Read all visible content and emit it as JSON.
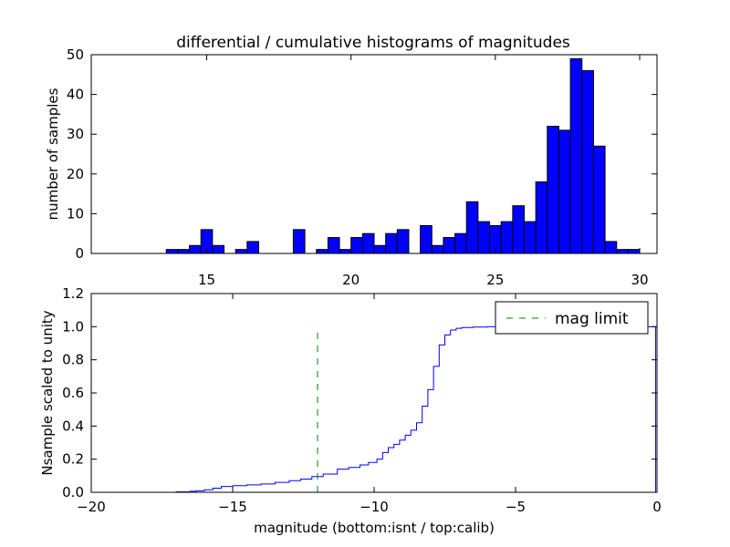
{
  "figure": {
    "title": "differential / cumulative histograms of magnitudes",
    "ylabel_top": "number of samples",
    "ylabel_bottom": "Nsample scaled to unity",
    "xlabel_bottom": "magnitude (bottom:isnt / top:calib)"
  },
  "colors": {
    "bars": "#0000ff",
    "cumulative": "#0000ff",
    "mag_limit": "#008000",
    "edges": "#000000"
  },
  "chart_data": [
    {
      "type": "bar",
      "title": "differential / cumulative histograms of magnitudes",
      "xlabel": "",
      "ylabel": "number of samples",
      "xlim": [
        11.0,
        30.6
      ],
      "ylim": [
        0,
        50
      ],
      "bin_width": 0.4,
      "xticks": [
        15,
        20,
        25,
        30
      ],
      "yticks": [
        0,
        10,
        20,
        30,
        40,
        50
      ],
      "x_tick_position": "top",
      "bins": [
        {
          "x": 13.6,
          "value": 1
        },
        {
          "x": 14.0,
          "value": 1
        },
        {
          "x": 14.4,
          "value": 2
        },
        {
          "x": 14.8,
          "value": 6
        },
        {
          "x": 15.2,
          "value": 2
        },
        {
          "x": 16.0,
          "value": 1
        },
        {
          "x": 16.4,
          "value": 3
        },
        {
          "x": 18.0,
          "value": 6
        },
        {
          "x": 18.8,
          "value": 1
        },
        {
          "x": 19.2,
          "value": 4
        },
        {
          "x": 19.6,
          "value": 1
        },
        {
          "x": 20.0,
          "value": 4
        },
        {
          "x": 20.4,
          "value": 5
        },
        {
          "x": 20.8,
          "value": 2
        },
        {
          "x": 21.2,
          "value": 5
        },
        {
          "x": 21.6,
          "value": 6
        },
        {
          "x": 22.4,
          "value": 7
        },
        {
          "x": 22.8,
          "value": 2
        },
        {
          "x": 23.2,
          "value": 4
        },
        {
          "x": 23.6,
          "value": 5
        },
        {
          "x": 24.0,
          "value": 13
        },
        {
          "x": 24.4,
          "value": 8
        },
        {
          "x": 24.8,
          "value": 7
        },
        {
          "x": 25.2,
          "value": 8
        },
        {
          "x": 25.6,
          "value": 12
        },
        {
          "x": 26.0,
          "value": 8
        },
        {
          "x": 26.4,
          "value": 18
        },
        {
          "x": 26.8,
          "value": 32
        },
        {
          "x": 27.2,
          "value": 31
        },
        {
          "x": 27.6,
          "value": 49
        },
        {
          "x": 28.0,
          "value": 46
        },
        {
          "x": 28.4,
          "value": 27
        },
        {
          "x": 28.8,
          "value": 3
        },
        {
          "x": 29.2,
          "value": 1
        },
        {
          "x": 29.6,
          "value": 1
        }
      ]
    },
    {
      "type": "line",
      "title": "",
      "xlabel": "magnitude (bottom:isnt / top:calib)",
      "ylabel": "Nsample scaled to unity",
      "xlim": [
        -20,
        0
      ],
      "ylim": [
        0,
        1.2
      ],
      "xticks": [
        -20,
        -15,
        -10,
        -5,
        0
      ],
      "xtick_labels": [
        "−20",
        "−15",
        "−10",
        "−5",
        "0"
      ],
      "yticks": [
        0.0,
        0.2,
        0.4,
        0.6,
        0.8,
        1.0,
        1.2
      ],
      "ytick_labels": [
        "0.0",
        "0.2",
        "0.4",
        "0.6",
        "0.8",
        "1.0",
        "1.2"
      ],
      "legend": {
        "placement": "upper-right",
        "entries": [
          {
            "label": "mag limit",
            "style": "dashed"
          }
        ]
      },
      "series": [
        {
          "style": "step",
          "x": [
            -20.0,
            -17.0,
            -16.5,
            -16.3,
            -16.0,
            -15.7,
            -15.4,
            -15.0,
            -14.5,
            -14.0,
            -13.5,
            -13.0,
            -12.6,
            -12.2,
            -11.8,
            -11.3,
            -10.9,
            -10.5,
            -10.2,
            -9.9,
            -9.7,
            -9.5,
            -9.3,
            -9.1,
            -8.9,
            -8.7,
            -8.5,
            -8.3,
            -8.1,
            -7.9,
            -7.7,
            -7.5,
            -7.3,
            -7.1,
            -6.9,
            -6.5,
            -6.0,
            -5.5,
            -4.0,
            -0.05,
            -0.05
          ],
          "y": [
            0.0,
            0.003,
            0.006,
            0.009,
            0.015,
            0.025,
            0.035,
            0.04,
            0.045,
            0.05,
            0.06,
            0.07,
            0.08,
            0.095,
            0.11,
            0.14,
            0.15,
            0.165,
            0.18,
            0.2,
            0.24,
            0.27,
            0.29,
            0.315,
            0.345,
            0.375,
            0.42,
            0.52,
            0.62,
            0.76,
            0.89,
            0.95,
            0.98,
            0.99,
            0.995,
            0.998,
            1.0,
            1.0,
            1.0,
            1.0,
            0.0
          ]
        },
        {
          "style": "dashed",
          "x": [
            -12.0,
            -12.0
          ],
          "y": [
            0.0,
            0.97
          ]
        }
      ]
    }
  ]
}
